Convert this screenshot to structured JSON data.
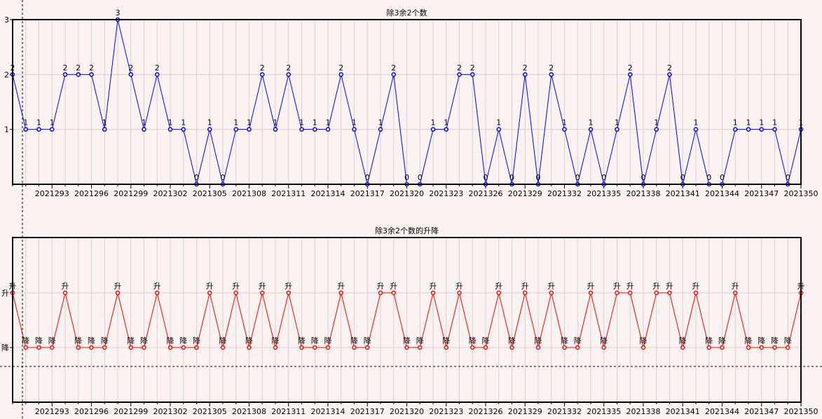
{
  "colors": {
    "background": "#fbf3f1",
    "grid": "#d8d0d0",
    "axis": "#000000",
    "top_series": "#0000ff",
    "bottom_series": "#ff0000",
    "text": "#000000"
  },
  "chart_data": [
    {
      "type": "line",
      "title": "除3余2个数",
      "xlabel": "",
      "ylabel": "",
      "ylim": [
        0,
        3
      ],
      "y_ticks": [
        "1",
        "2",
        "3"
      ],
      "grid": true,
      "categories": [
        "2021290",
        "2021291",
        "2021292",
        "2021293",
        "2021294",
        "2021295",
        "2021296",
        "2021297",
        "2021298",
        "2021299",
        "2021300",
        "2021301",
        "2021302",
        "2021303",
        "2021304",
        "2021305",
        "2021306",
        "2021307",
        "2021308",
        "2021309",
        "2021310",
        "2021311",
        "2021312",
        "2021313",
        "2021314",
        "2021315",
        "2021316",
        "2021317",
        "2021318",
        "2021319",
        "2021320",
        "2021321",
        "2021322",
        "2021323",
        "2021324",
        "2021325",
        "2021326",
        "2021327",
        "2021328",
        "2021329",
        "2021330",
        "2021331",
        "2021332",
        "2021333",
        "2021334",
        "2021335",
        "2021336",
        "2021337",
        "2021338",
        "2021339",
        "2021340",
        "2021341",
        "2021342",
        "2021343",
        "2021344",
        "2021345",
        "2021346",
        "2021347",
        "2021348",
        "2021349",
        "2021350"
      ],
      "x_tick_labels": [
        "2021293",
        "2021296",
        "2021299",
        "2021302",
        "2021305",
        "2021308",
        "2021311",
        "2021314",
        "2021317",
        "2021320",
        "2021323",
        "2021326",
        "2021329",
        "2021332",
        "2021335",
        "2021338",
        "2021341",
        "2021344",
        "2021347",
        "2021350"
      ],
      "series": [
        {
          "values": [
            2,
            1,
            1,
            1,
            2,
            2,
            2,
            1,
            3,
            2,
            1,
            2,
            1,
            1,
            0,
            1,
            0,
            1,
            1,
            2,
            1,
            2,
            1,
            1,
            1,
            2,
            1,
            0,
            1,
            2,
            0,
            0,
            1,
            1,
            2,
            2,
            0,
            1,
            0,
            2,
            0,
            2,
            1,
            0,
            1,
            0,
            1,
            2,
            0,
            1,
            2,
            0,
            1,
            0,
            0,
            1,
            1,
            1,
            1,
            0,
            1
          ]
        }
      ]
    },
    {
      "type": "line",
      "title": "除3余2个数的升降",
      "xlabel": "",
      "ylabel": "",
      "y_ticks": [
        "升",
        "降"
      ],
      "grid": true,
      "categories_ref": "same as first chart",
      "x_tick_labels": [
        "2021293",
        "2021296",
        "2021299",
        "2021302",
        "2021305",
        "2021308",
        "2021311",
        "2021314",
        "2021317",
        "2021320",
        "2021323",
        "2021326",
        "2021329",
        "2021332",
        "2021335",
        "2021338",
        "2021341",
        "2021344",
        "2021347",
        "2021350"
      ],
      "series": [
        {
          "values": [
            "升",
            "降",
            "降",
            "降",
            "升",
            "降",
            "降",
            "降",
            "升",
            "降",
            "降",
            "升",
            "降",
            "降",
            "降",
            "升",
            "降",
            "升",
            "降",
            "升",
            "降",
            "升",
            "降",
            "降",
            "降",
            "升",
            "降",
            "降",
            "升",
            "升",
            "降",
            "降",
            "升",
            "降",
            "升",
            "降",
            "降",
            "升",
            "降",
            "升",
            "降",
            "升",
            "降",
            "降",
            "升",
            "降",
            "升",
            "升",
            "降",
            "升",
            "升",
            "降",
            "升",
            "降",
            "降",
            "升",
            "降",
            "降",
            "降",
            "降",
            "升"
          ]
        }
      ]
    }
  ]
}
